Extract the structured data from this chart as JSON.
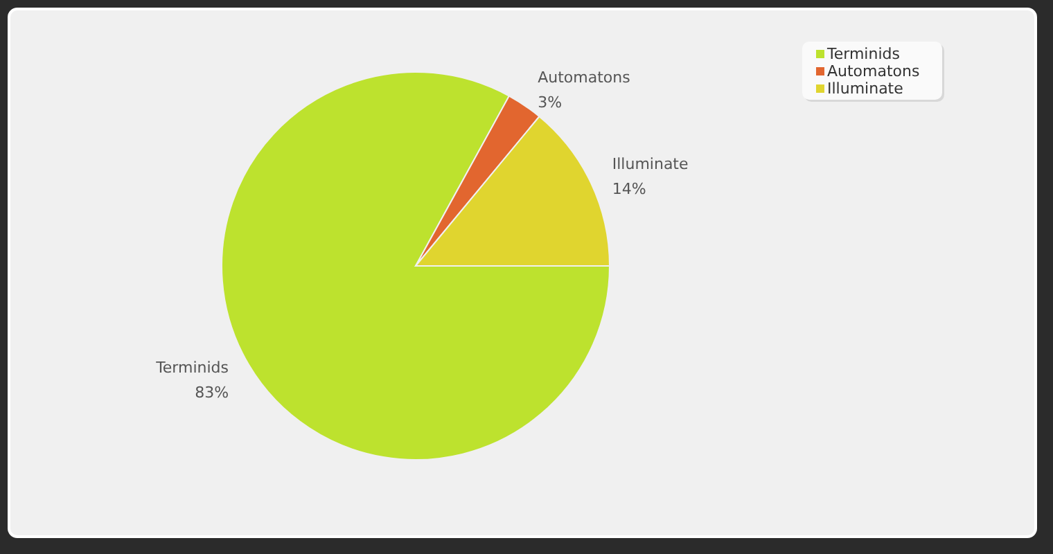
{
  "chart_data": {
    "type": "pie",
    "categories": [
      "Terminids",
      "Automatons",
      "Illuminate"
    ],
    "values": [
      83,
      3,
      14
    ],
    "colors": [
      "#bde22e",
      "#e2662f",
      "#e0d52f"
    ],
    "value_labels": [
      "83%",
      "3%",
      "14%"
    ],
    "legend": "top right"
  }
}
